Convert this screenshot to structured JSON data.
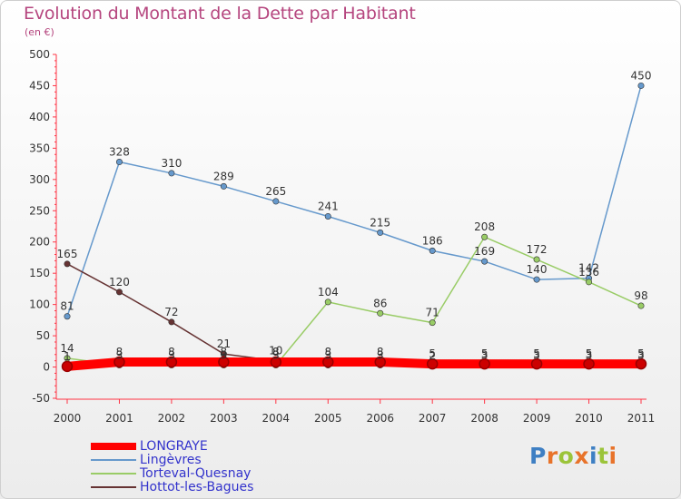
{
  "header": {
    "title": "Evolution du Montant de la Dette par Habitant",
    "subtitle": "(en €)"
  },
  "logo": {
    "letters": [
      "P",
      "r",
      "o",
      "x",
      "i",
      "t",
      "i"
    ],
    "colors": [
      "#3e7fc3",
      "#e8732a",
      "#9bc43a",
      "#e8732a",
      "#3e7fc3",
      "#9bc43a",
      "#e8732a"
    ]
  },
  "chart_data": {
    "type": "line",
    "title": "Evolution du Montant de la Dette par Habitant",
    "subtitle": "(en €)",
    "x": [
      "2000",
      "2001",
      "2002",
      "2003",
      "2004",
      "2005",
      "2006",
      "2007",
      "2008",
      "2009",
      "2010",
      "2011"
    ],
    "yticks": [
      -50,
      0,
      50,
      100,
      150,
      200,
      250,
      300,
      350,
      400,
      450,
      500
    ],
    "ylim": [
      -50,
      500
    ],
    "grid": false,
    "legend_position": "bottom-left",
    "series": [
      {
        "name": "LONGRAYE",
        "color": "#ff0000",
        "values": [
          1,
          8,
          8,
          8,
          8,
          8,
          8,
          5,
          5,
          5,
          5,
          5
        ]
      },
      {
        "name": "Lingèvres",
        "color": "#6699cc",
        "values": [
          81,
          328,
          310,
          289,
          265,
          241,
          215,
          186,
          169,
          140,
          142,
          450
        ]
      },
      {
        "name": "Torteval-Quesnay",
        "color": "#99cc66",
        "values": [
          14,
          3,
          3,
          3,
          3,
          104,
          86,
          71,
          208,
          172,
          136,
          98
        ]
      },
      {
        "name": "Hottot-les-Bagues",
        "color": "#663333",
        "values": [
          165,
          120,
          72,
          21,
          10,
          3,
          3,
          2,
          3,
          3,
          3,
          3
        ]
      }
    ]
  }
}
